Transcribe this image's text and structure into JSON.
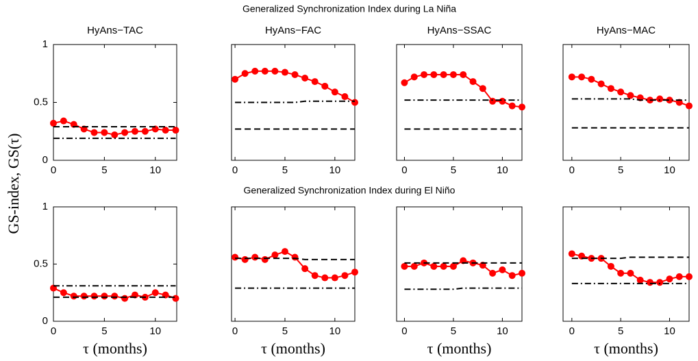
{
  "suptitles": [
    "Generalized Synchronization Index during La Niña",
    "Generalized Synchronization Index during El Niño"
  ],
  "ylabel": "GS-index,  GS(τ)",
  "chart_data": [
    {
      "type": "line",
      "title": "HyAns−TAC",
      "x": [
        0,
        1,
        2,
        3,
        4,
        5,
        6,
        7,
        8,
        9,
        10,
        11,
        12
      ],
      "xlim": [
        0,
        12.1
      ],
      "xticks": [
        0,
        5,
        10
      ],
      "ylim": [
        0,
        1
      ],
      "yticks": [
        0,
        0.5,
        1
      ],
      "series": [
        {
          "color": "#ff0000",
          "style": "marker",
          "values": [
            0.32,
            0.34,
            0.31,
            0.27,
            0.24,
            0.24,
            0.22,
            0.24,
            0.25,
            0.25,
            0.27,
            0.26,
            0.26
          ]
        },
        {
          "color": "#000000",
          "style": "dashed",
          "values": [
            0.29,
            0.29,
            0.29,
            0.29,
            0.29,
            0.29,
            0.29,
            0.29,
            0.29,
            0.29,
            0.29,
            0.29,
            0.29
          ]
        },
        {
          "color": "#000000",
          "style": "dashdot",
          "values": [
            0.19,
            0.19,
            0.19,
            0.19,
            0.19,
            0.19,
            0.19,
            0.19,
            0.19,
            0.19,
            0.19,
            0.19,
            0.19
          ]
        }
      ]
    },
    {
      "type": "line",
      "title": "HyAns−FAC",
      "x": [
        0,
        1,
        2,
        3,
        4,
        5,
        6,
        7,
        8,
        9,
        10,
        11,
        12
      ],
      "xlim": [
        -0.35,
        12
      ],
      "xticks": [
        0,
        5,
        10
      ],
      "ylim": [
        0,
        1
      ],
      "series": [
        {
          "color": "#ff0000",
          "style": "marker",
          "values": [
            0.7,
            0.75,
            0.77,
            0.77,
            0.77,
            0.76,
            0.74,
            0.71,
            0.68,
            0.64,
            0.59,
            0.55,
            0.5
          ]
        },
        {
          "color": "#000000",
          "style": "dashdot",
          "values": [
            0.5,
            0.5,
            0.5,
            0.5,
            0.5,
            0.5,
            0.5,
            0.51,
            0.51,
            0.51,
            0.51,
            0.51,
            0.51
          ]
        },
        {
          "color": "#000000",
          "style": "dashed",
          "values": [
            0.27,
            0.27,
            0.27,
            0.27,
            0.27,
            0.27,
            0.27,
            0.27,
            0.27,
            0.27,
            0.27,
            0.27,
            0.27
          ]
        }
      ]
    },
    {
      "type": "line",
      "title": "HyAns−SSAC",
      "x": [
        0,
        1,
        2,
        3,
        4,
        5,
        6,
        7,
        8,
        9,
        10,
        11,
        12
      ],
      "xlim": [
        -0.8,
        12
      ],
      "xticks": [
        0,
        5,
        10
      ],
      "ylim": [
        0,
        1
      ],
      "series": [
        {
          "color": "#ff0000",
          "style": "marker",
          "values": [
            0.67,
            0.72,
            0.74,
            0.74,
            0.74,
            0.74,
            0.74,
            0.68,
            0.62,
            0.51,
            0.51,
            0.47,
            0.46
          ]
        },
        {
          "color": "#000000",
          "style": "dashdot",
          "values": [
            0.52,
            0.52,
            0.52,
            0.52,
            0.52,
            0.52,
            0.52,
            0.52,
            0.52,
            0.52,
            0.52,
            0.52,
            0.52
          ]
        },
        {
          "color": "#000000",
          "style": "dashed",
          "values": [
            0.27,
            0.27,
            0.27,
            0.27,
            0.27,
            0.27,
            0.27,
            0.27,
            0.27,
            0.27,
            0.27,
            0.27,
            0.27
          ]
        }
      ]
    },
    {
      "type": "line",
      "title": "HyAns−MAC",
      "x": [
        0,
        1,
        2,
        3,
        4,
        5,
        6,
        7,
        8,
        9,
        10,
        11,
        12
      ],
      "xlim": [
        -0.9,
        12
      ],
      "xticks": [
        0,
        5,
        10
      ],
      "ylim": [
        0,
        1
      ],
      "series": [
        {
          "color": "#ff0000",
          "style": "marker",
          "values": [
            0.72,
            0.72,
            0.7,
            0.66,
            0.62,
            0.59,
            0.56,
            0.54,
            0.52,
            0.53,
            0.52,
            0.5,
            0.47
          ]
        },
        {
          "color": "#000000",
          "style": "dashdot",
          "values": [
            0.53,
            0.53,
            0.53,
            0.53,
            0.53,
            0.53,
            0.53,
            0.52,
            0.52,
            0.52,
            0.52,
            0.52,
            0.52
          ]
        },
        {
          "color": "#000000",
          "style": "dashed",
          "values": [
            0.28,
            0.28,
            0.28,
            0.28,
            0.28,
            0.28,
            0.28,
            0.28,
            0.28,
            0.28,
            0.28,
            0.28,
            0.28
          ]
        }
      ]
    },
    {
      "type": "line",
      "xlabel": "τ  (months)",
      "x": [
        0,
        1,
        2,
        3,
        4,
        5,
        6,
        7,
        8,
        9,
        10,
        11,
        12
      ],
      "xlim": [
        0,
        12.1
      ],
      "xticks": [
        0,
        5,
        10
      ],
      "ylim": [
        0,
        1
      ],
      "yticks": [
        0,
        0.5,
        1
      ],
      "series": [
        {
          "color": "#ff0000",
          "style": "marker",
          "values": [
            0.29,
            0.25,
            0.22,
            0.22,
            0.22,
            0.22,
            0.22,
            0.2,
            0.23,
            0.21,
            0.25,
            0.23,
            0.2
          ]
        },
        {
          "color": "#000000",
          "style": "dashdot",
          "values": [
            0.31,
            0.31,
            0.31,
            0.31,
            0.31,
            0.31,
            0.31,
            0.31,
            0.31,
            0.31,
            0.31,
            0.31,
            0.31
          ]
        },
        {
          "color": "#000000",
          "style": "dashed",
          "values": [
            0.21,
            0.21,
            0.21,
            0.21,
            0.21,
            0.21,
            0.21,
            0.21,
            0.21,
            0.21,
            0.21,
            0.21,
            0.21
          ]
        }
      ]
    },
    {
      "type": "line",
      "xlabel": "τ  (months)",
      "x": [
        0,
        1,
        2,
        3,
        4,
        5,
        6,
        7,
        8,
        9,
        10,
        11,
        12
      ],
      "xlim": [
        -0.35,
        12
      ],
      "xticks": [
        0,
        5,
        10
      ],
      "ylim": [
        0,
        1
      ],
      "series": [
        {
          "color": "#ff0000",
          "style": "marker",
          "values": [
            0.56,
            0.54,
            0.56,
            0.54,
            0.58,
            0.61,
            0.56,
            0.46,
            0.4,
            0.38,
            0.38,
            0.4,
            0.43
          ]
        },
        {
          "color": "#000000",
          "style": "dashed",
          "values": [
            0.55,
            0.55,
            0.55,
            0.55,
            0.55,
            0.55,
            0.55,
            0.54,
            0.54,
            0.54,
            0.54,
            0.54,
            0.54
          ]
        },
        {
          "color": "#000000",
          "style": "dashdot",
          "values": [
            0.29,
            0.29,
            0.29,
            0.29,
            0.29,
            0.29,
            0.29,
            0.29,
            0.29,
            0.29,
            0.29,
            0.29,
            0.29
          ]
        }
      ]
    },
    {
      "type": "line",
      "xlabel": "τ  (months)",
      "x": [
        0,
        1,
        2,
        3,
        4,
        5,
        6,
        7,
        8,
        9,
        10,
        11,
        12
      ],
      "xlim": [
        -0.8,
        12
      ],
      "xticks": [
        0,
        5,
        10
      ],
      "ylim": [
        0,
        1
      ],
      "series": [
        {
          "color": "#ff0000",
          "style": "marker",
          "values": [
            0.48,
            0.48,
            0.51,
            0.48,
            0.48,
            0.48,
            0.53,
            0.51,
            0.49,
            0.42,
            0.45,
            0.4,
            0.42
          ]
        },
        {
          "color": "#000000",
          "style": "dashed",
          "values": [
            0.51,
            0.51,
            0.51,
            0.51,
            0.51,
            0.51,
            0.51,
            0.51,
            0.51,
            0.51,
            0.51,
            0.51,
            0.51
          ]
        },
        {
          "color": "#000000",
          "style": "dashdot",
          "values": [
            0.28,
            0.28,
            0.28,
            0.28,
            0.28,
            0.28,
            0.29,
            0.29,
            0.29,
            0.29,
            0.29,
            0.29,
            0.29
          ]
        }
      ]
    },
    {
      "type": "line",
      "xlabel": "τ  (months)",
      "x": [
        0,
        1,
        2,
        3,
        4,
        5,
        6,
        7,
        8,
        9,
        10,
        11,
        12
      ],
      "xlim": [
        -0.9,
        12
      ],
      "xticks": [
        0,
        5,
        10
      ],
      "ylim": [
        0,
        1
      ],
      "series": [
        {
          "color": "#ff0000",
          "style": "marker",
          "values": [
            0.59,
            0.57,
            0.55,
            0.55,
            0.48,
            0.42,
            0.42,
            0.36,
            0.34,
            0.34,
            0.37,
            0.39,
            0.39
          ]
        },
        {
          "color": "#000000",
          "style": "dashed",
          "values": [
            0.55,
            0.55,
            0.55,
            0.55,
            0.55,
            0.55,
            0.56,
            0.56,
            0.56,
            0.56,
            0.56,
            0.56,
            0.56
          ]
        },
        {
          "color": "#000000",
          "style": "dashdot",
          "values": [
            0.33,
            0.33,
            0.33,
            0.33,
            0.33,
            0.33,
            0.33,
            0.33,
            0.33,
            0.33,
            0.33,
            0.33,
            0.33
          ]
        }
      ]
    }
  ]
}
